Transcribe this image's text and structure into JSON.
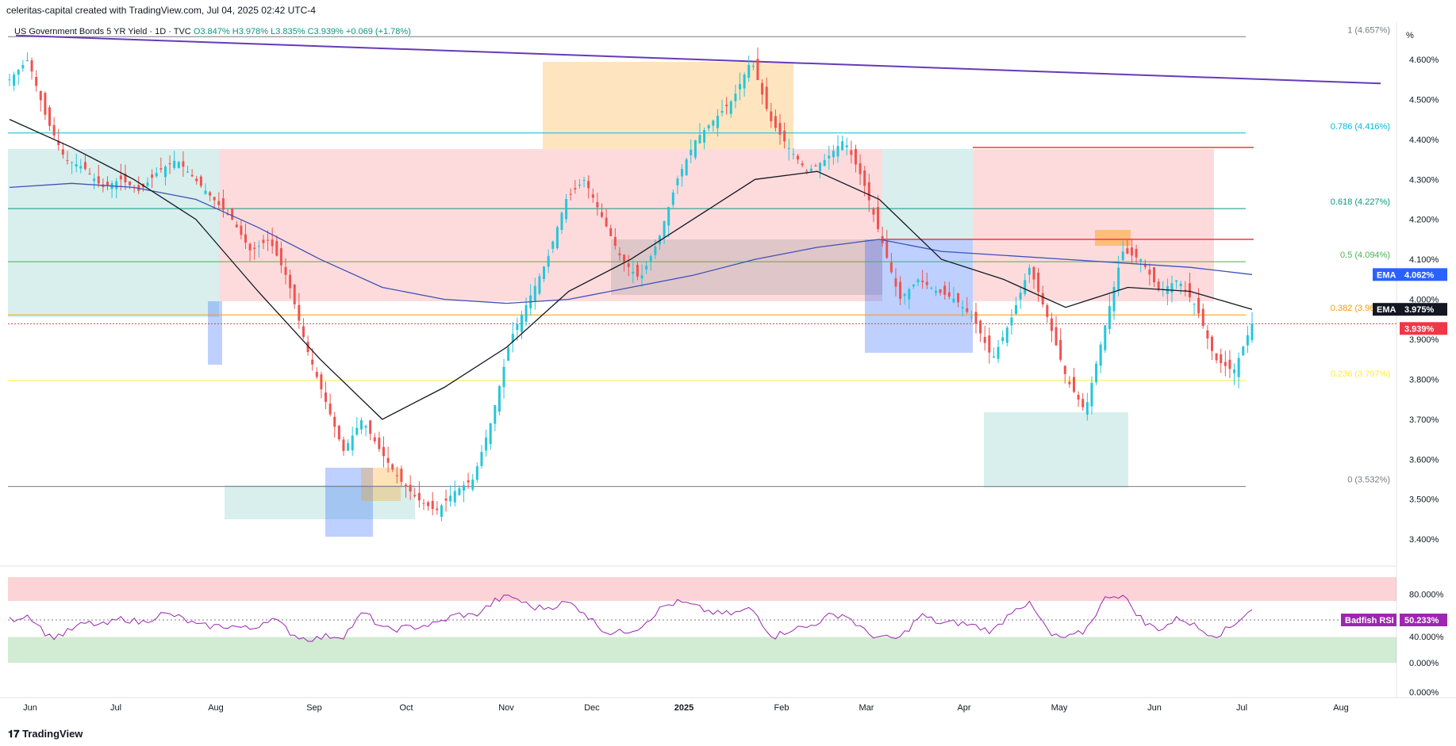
{
  "header": {
    "credit": "celeritas-capital created with TradingView.com, Jul 04, 2025 02:42 UTC-4",
    "symbol_line": "US Government Bonds 5 YR Yield · 1D · TVC",
    "open": "O3.847%",
    "high": "H3.978%",
    "low": "L3.835%",
    "close": "C3.939%",
    "change": "+0.069 (+1.78%)"
  },
  "price_axis": {
    "unit": "%",
    "ticks": [
      "4.600%",
      "4.500%",
      "4.400%",
      "4.300%",
      "4.200%",
      "4.100%",
      "4.000%",
      "3.900%",
      "3.800%",
      "3.700%",
      "3.600%",
      "3.500%",
      "3.400%"
    ],
    "tick_values": [
      4.6,
      4.5,
      4.4,
      4.3,
      4.2,
      4.1,
      4.0,
      3.9,
      3.8,
      3.7,
      3.6,
      3.5,
      3.4
    ]
  },
  "price_tags": [
    {
      "label": "EMA",
      "value": "4.062%",
      "price": 4.062,
      "color": "#2962ff"
    },
    {
      "label": "EMA",
      "value": "3.975%",
      "price": 3.975,
      "color": "#131722"
    },
    {
      "label": "",
      "value": "3.939%",
      "price": 3.939,
      "color": "#f23645"
    }
  ],
  "fib_levels": [
    {
      "label": "1 (4.657%)",
      "price": 4.657,
      "color": "#787b86"
    },
    {
      "label": "0.786 (4.416%)",
      "price": 4.416,
      "color": "#00bcd4"
    },
    {
      "label": "0.618 (4.227%)",
      "price": 4.227,
      "color": "#089981"
    },
    {
      "label": "0.5 (4.094%)",
      "price": 4.094,
      "color": "#4caf50"
    },
    {
      "label": "0.382 (3.961%)",
      "price": 3.961,
      "color": "#ff9800"
    },
    {
      "label": "0.236 (3.797%)",
      "price": 3.797,
      "color": "#ffeb3b"
    },
    {
      "label": "0 (3.532%)",
      "price": 3.532,
      "color": "#787b86"
    }
  ],
  "time_axis": [
    "Jun",
    "Jul",
    "Aug",
    "Sep",
    "Oct",
    "Nov",
    "Dec",
    "2025",
    "Feb",
    "Mar",
    "Apr",
    "May",
    "Jun",
    "Jul",
    "Aug"
  ],
  "rsi": {
    "name": "Badfish RSI",
    "value": "50.233%",
    "ticks": [
      "80.000%",
      "40.000%",
      "0.000%",
      "0.000%"
    ],
    "color": "#9c27b0"
  },
  "footer": {
    "brand": "TradingView"
  },
  "chart_data": {
    "type": "candlestick",
    "title": "US Government Bonds 5 YR Yield · 1D · TVC",
    "ylabel": "%",
    "ylim": [
      3.33,
      4.69
    ],
    "x_months": [
      "Jun",
      "Jul",
      "Aug",
      "Sep",
      "Oct",
      "Nov",
      "Dec",
      "2025",
      "Feb",
      "Mar",
      "Apr",
      "May",
      "Jun",
      "Jul"
    ],
    "close_path": [
      4.55,
      4.6,
      4.45,
      4.35,
      4.33,
      4.28,
      4.3,
      4.27,
      4.32,
      4.35,
      4.3,
      4.25,
      4.2,
      4.12,
      4.15,
      4.05,
      3.88,
      3.75,
      3.62,
      3.7,
      3.62,
      3.55,
      3.5,
      3.47,
      3.52,
      3.55,
      3.7,
      3.9,
      4.0,
      4.1,
      4.25,
      4.3,
      4.2,
      4.1,
      4.05,
      4.15,
      4.3,
      4.4,
      4.45,
      4.5,
      4.6,
      4.45,
      4.38,
      4.32,
      4.35,
      4.4,
      4.3,
      4.15,
      4.0,
      4.05,
      4.02,
      4.0,
      3.95,
      3.85,
      3.95,
      4.08,
      3.95,
      3.8,
      3.72,
      3.92,
      4.12,
      4.1,
      4.02,
      4.05,
      3.98,
      3.85,
      3.82,
      3.939
    ],
    "ema_fast_path": [
      4.28,
      4.29,
      4.28,
      4.25,
      4.18,
      4.1,
      4.03,
      4.0,
      3.99,
      4.0,
      4.03,
      4.06,
      4.1,
      4.13,
      4.15,
      4.12,
      4.11,
      4.1,
      4.09,
      4.08,
      4.062
    ],
    "ema_slow_path": [
      4.45,
      4.38,
      4.3,
      4.2,
      4.02,
      3.85,
      3.7,
      3.78,
      3.88,
      4.02,
      4.1,
      4.2,
      4.3,
      4.32,
      4.25,
      4.1,
      4.05,
      3.98,
      4.03,
      4.02,
      3.975
    ],
    "trendline": [
      {
        "x": 0.0,
        "y": 4.66
      },
      {
        "x": 1.0,
        "y": 4.54
      }
    ]
  }
}
